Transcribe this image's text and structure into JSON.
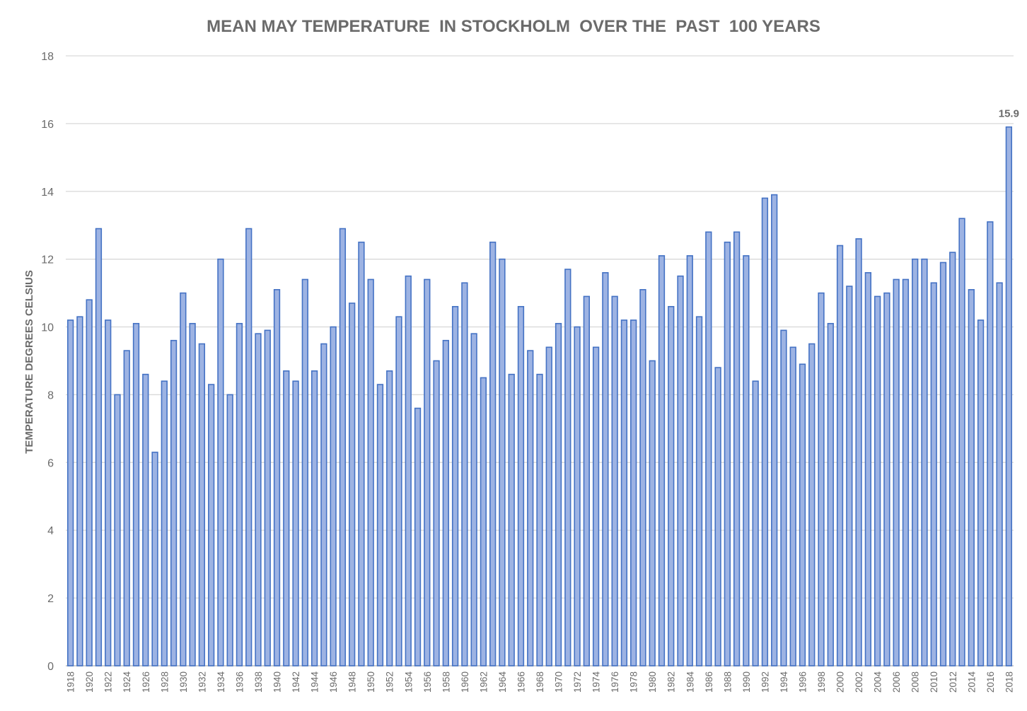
{
  "chart_data": {
    "type": "bar",
    "title": "MEAN MAY TEMPERATURE  IN STOCKHOLM  OVER THE  PAST  100 YEARS",
    "xlabel": "",
    "ylabel": "TEMPERATURE DEGREES CELSIUS",
    "ylim": [
      0,
      18
    ],
    "yticks": [
      "0",
      "2",
      "4",
      "6",
      "8",
      "10",
      "12",
      "14",
      "16",
      "18"
    ],
    "grid": true,
    "legend": "none",
    "bar_fill": "#9db3e3",
    "bar_stroke": "#4472c4",
    "categories": [
      "1918",
      "1919",
      "1920",
      "1921",
      "1922",
      "1923",
      "1924",
      "1925",
      "1926",
      "1927",
      "1928",
      "1929",
      "1930",
      "1931",
      "1932",
      "1933",
      "1934",
      "1935",
      "1936",
      "1937",
      "1938",
      "1939",
      "1940",
      "1941",
      "1942",
      "1943",
      "1944",
      "1945",
      "1946",
      "1947",
      "1948",
      "1949",
      "1950",
      "1951",
      "1952",
      "1953",
      "1954",
      "1955",
      "1956",
      "1957",
      "1958",
      "1959",
      "1960",
      "1961",
      "1962",
      "1963",
      "1964",
      "1965",
      "1966",
      "1967",
      "1968",
      "1969",
      "1970",
      "1971",
      "1972",
      "1973",
      "1974",
      "1975",
      "1976",
      "1977",
      "1978",
      "1979",
      "1980",
      "1981",
      "1982",
      "1983",
      "1984",
      "1985",
      "1986",
      "1987",
      "1988",
      "1989",
      "1990",
      "1991",
      "1992",
      "1993",
      "1994",
      "1995",
      "1996",
      "1997",
      "1998",
      "1999",
      "2000",
      "2001",
      "2002",
      "2003",
      "2004",
      "2005",
      "2006",
      "2007",
      "2008",
      "2009",
      "2010",
      "2011",
      "2012",
      "2013",
      "2014",
      "2015",
      "2016",
      "2017",
      "2018"
    ],
    "values": [
      10.2,
      10.3,
      10.8,
      12.9,
      10.2,
      8.0,
      9.3,
      10.1,
      8.6,
      6.3,
      8.4,
      9.6,
      11.0,
      10.1,
      9.5,
      8.3,
      12.0,
      8.0,
      10.1,
      12.9,
      9.8,
      9.9,
      11.1,
      8.7,
      8.4,
      11.4,
      8.7,
      9.5,
      10.0,
      12.9,
      10.7,
      12.5,
      11.4,
      8.3,
      8.7,
      10.3,
      11.5,
      7.6,
      11.4,
      9.0,
      9.6,
      10.6,
      11.3,
      9.8,
      8.5,
      12.5,
      12.0,
      8.6,
      10.6,
      9.3,
      8.6,
      9.4,
      10.1,
      11.7,
      10.0,
      10.9,
      9.4,
      11.6,
      10.9,
      10.2,
      10.2,
      11.1,
      9.0,
      12.1,
      10.6,
      11.5,
      12.1,
      10.3,
      12.8,
      8.8,
      12.5,
      12.8,
      12.1,
      8.4,
      13.8,
      13.9,
      9.9,
      9.4,
      8.9,
      9.5,
      11.0,
      10.1,
      12.4,
      11.2,
      12.6,
      11.6,
      10.9,
      11.0,
      11.4,
      11.4,
      12.0,
      12.0,
      11.3,
      11.9,
      12.2,
      13.2,
      11.1,
      10.2,
      13.1,
      11.3,
      15.9
    ],
    "data_labels": [
      {
        "category": "2018",
        "text": "15.9"
      }
    ]
  }
}
